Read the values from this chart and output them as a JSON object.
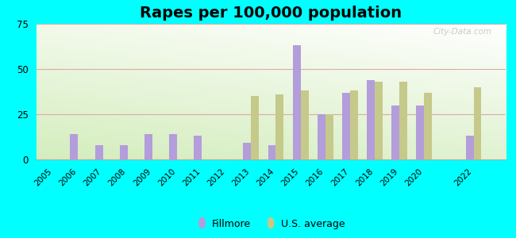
{
  "title": "Rapes per 100,000 population",
  "background_color": "#00FFFF",
  "years": [
    2005,
    2006,
    2007,
    2008,
    2009,
    2010,
    2011,
    2012,
    2013,
    2014,
    2015,
    2016,
    2017,
    2018,
    2019,
    2020,
    2022
  ],
  "fillmore": [
    0,
    14,
    8,
    8,
    14,
    14,
    13,
    0,
    9,
    8,
    63,
    25,
    37,
    44,
    30,
    30,
    13
  ],
  "us_avg_years": [
    2013,
    2014,
    2015,
    2016,
    2017,
    2018,
    2019,
    2020,
    2022
  ],
  "us_avg_values": [
    35,
    36,
    38,
    25,
    38,
    43,
    43,
    37,
    40
  ],
  "fillmore_color": "#b39ddb",
  "us_avg_color": "#c5c98a",
  "ylim": [
    0,
    75
  ],
  "yticks": [
    0,
    25,
    50,
    75
  ],
  "legend_fillmore": "Fillmore",
  "legend_us": "U.S. average",
  "watermark": "City-Data.com",
  "title_fontsize": 14,
  "bar_width": 0.32
}
